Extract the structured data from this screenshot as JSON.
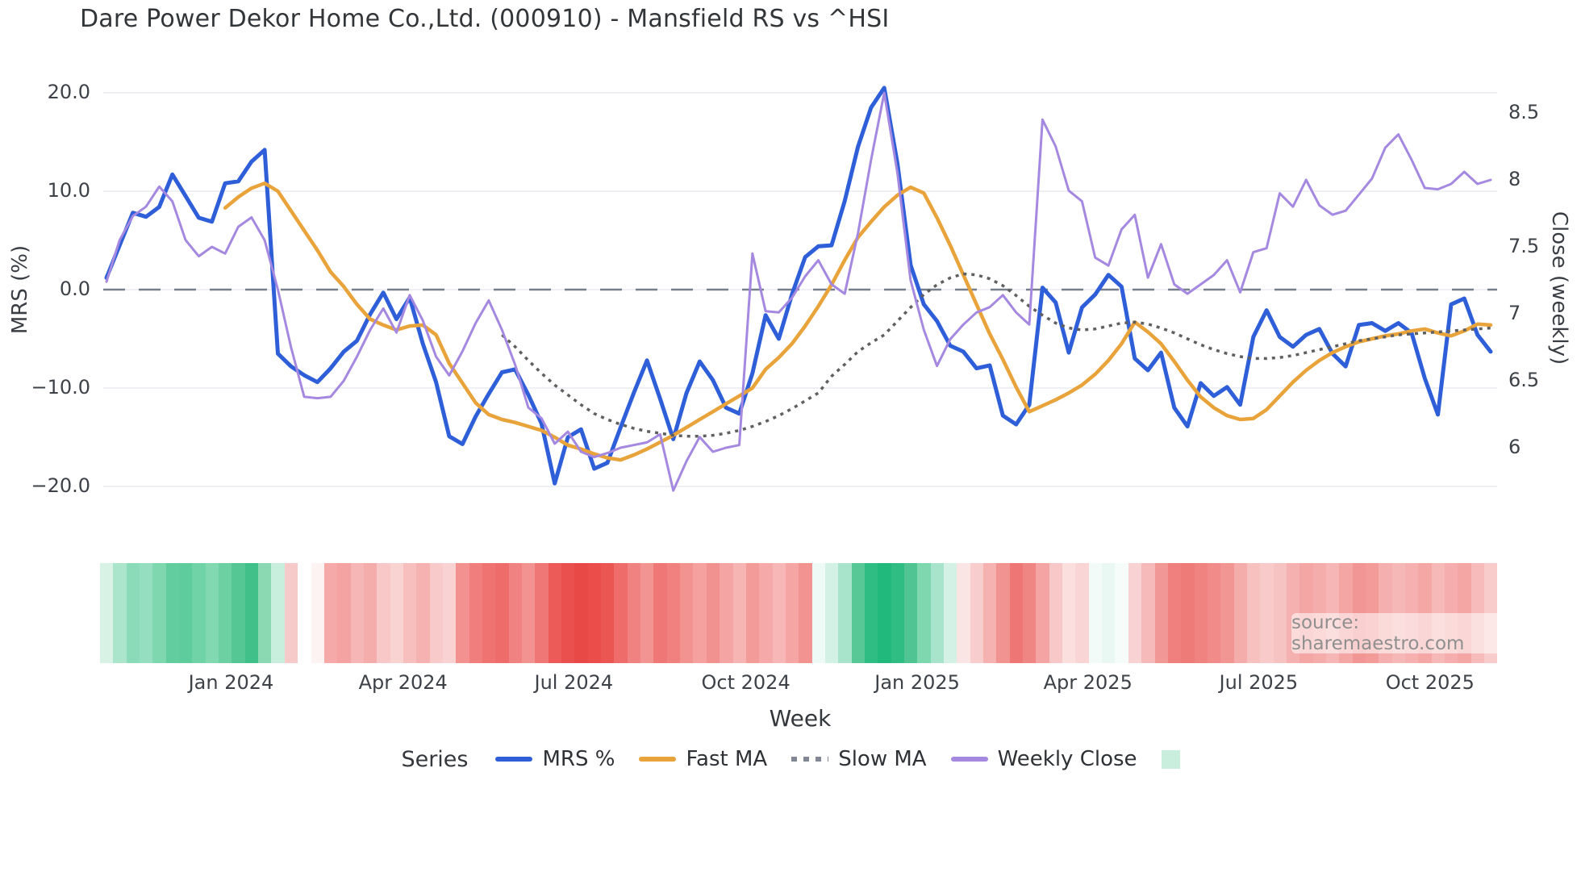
{
  "title": "Dare Power Dekor Home Co.,Ltd. (000910) - Mansfield RS vs ^HSI",
  "source": "source: sharemaestro.com",
  "legend": {
    "title": "Series",
    "entries": [
      {
        "label": "MRS %",
        "color": "#2e5fd8",
        "style": "solid"
      },
      {
        "label": "Fast MA",
        "color": "#e9a33b",
        "style": "solid"
      },
      {
        "label": "Slow MA",
        "color": "#828893",
        "style": "dotted"
      },
      {
        "label": "Weekly Close",
        "color": "#a588e0",
        "style": "solid"
      }
    ],
    "heatmap_swatch_color": "#c9eedd"
  },
  "chart_data": {
    "type": "line",
    "title": "Dare Power Dekor Home Co.,Ltd. (000910) - Mansfield RS vs ^HSI",
    "xlabel": "Week",
    "x_axis": {
      "label": "Week",
      "ticks": [
        {
          "label": "Jan 2024",
          "week": 9.45
        },
        {
          "label": "Apr 2024",
          "week": 22.5
        },
        {
          "label": "Jul 2024",
          "week": 35.45
        },
        {
          "label": "Oct 2024",
          "week": 48.5
        },
        {
          "label": "Jan 2025",
          "week": 61.5
        },
        {
          "label": "Apr 2025",
          "week": 74.45
        },
        {
          "label": "Jul 2025",
          "week": 87.4
        },
        {
          "label": "Oct 2025",
          "week": 100.4
        }
      ]
    },
    "y_left": {
      "label": "MRS (%)",
      "ticks": [
        20,
        10,
        0,
        -10,
        -20
      ],
      "tick_labels": [
        "20.0",
        "10.0",
        "0.0",
        "−10.0",
        "−20.0"
      ],
      "range": [
        -21.5,
        22.4
      ],
      "zero_line": true,
      "grid": true
    },
    "y_right": {
      "label": "Close (weekly)",
      "ticks": [
        8.5,
        8,
        7.5,
        7,
        6.5,
        6
      ],
      "tick_labels": [
        "8.5",
        "8",
        "7.5",
        "7",
        "6.5",
        "6"
      ],
      "range": [
        5.6,
        8.83
      ]
    },
    "weeks": 106,
    "series": [
      {
        "name": "MRS %",
        "axis": "left",
        "color": "#2e5fd8",
        "style": "solid",
        "width": 5,
        "values": [
          1.2,
          4.5,
          7.8,
          7.4,
          8.4,
          11.7,
          9.5,
          7.3,
          6.9,
          10.8,
          11.0,
          13.0,
          14.2,
          -6.5,
          -7.8,
          -8.7,
          -9.4,
          -8.0,
          -6.3,
          -5.2,
          -2.5,
          -0.3,
          -3.0,
          -0.8,
          -5.5,
          -9.4,
          -14.9,
          -15.7,
          -12.9,
          -10.6,
          -8.4,
          -8.1,
          -10.7,
          -13.6,
          -19.7,
          -15.0,
          -14.2,
          -18.2,
          -17.6,
          -14.0,
          -10.5,
          -7.2,
          -11.1,
          -15.2,
          -10.5,
          -7.3,
          -9.2,
          -12.0,
          -12.6,
          -8.5,
          -2.6,
          -5.0,
          -0.5,
          3.3,
          4.4,
          4.5,
          9.0,
          14.5,
          18.5,
          20.5,
          12.8,
          2.5,
          -1.5,
          -3.2,
          -5.7,
          -6.3,
          -8.0,
          -7.7,
          -12.8,
          -13.7,
          -11.7,
          0.2,
          -1.3,
          -6.4,
          -1.8,
          -0.5,
          1.5,
          0.3,
          -7.0,
          -8.2,
          -6.4,
          -12.0,
          -13.9,
          -9.5,
          -10.8,
          -9.9,
          -11.7,
          -4.8,
          -2.1,
          -4.8,
          -5.8,
          -4.6,
          -4.0,
          -6.5,
          -7.8,
          -3.6,
          -3.4,
          -4.2,
          -3.4,
          -4.4,
          -9.0,
          -12.7,
          -1.5,
          -0.9,
          -4.6,
          -6.3
        ]
      },
      {
        "name": "Fast MA",
        "axis": "left",
        "color": "#e9a33b",
        "style": "solid",
        "width": 4.5,
        "values": [
          null,
          null,
          null,
          null,
          null,
          null,
          null,
          null,
          null,
          8.3,
          9.4,
          10.3,
          10.8,
          10.0,
          8.0,
          6.0,
          4.0,
          1.8,
          0.3,
          -1.5,
          -3.0,
          -3.6,
          -4.1,
          -3.7,
          -3.6,
          -4.6,
          -7.5,
          -9.5,
          -11.5,
          -12.7,
          -13.2,
          -13.5,
          -13.9,
          -14.3,
          -15.0,
          -15.8,
          -16.2,
          -16.7,
          -17.1,
          -17.3,
          -16.8,
          -16.2,
          -15.5,
          -14.8,
          -14.0,
          -13.2,
          -12.4,
          -11.6,
          -10.8,
          -10.0,
          -8.1,
          -6.9,
          -5.5,
          -3.7,
          -1.7,
          0.5,
          3.0,
          5.3,
          6.9,
          8.4,
          9.6,
          10.4,
          9.8,
          7.3,
          4.5,
          1.5,
          -1.5,
          -4.5,
          -7.1,
          -9.9,
          -12.4,
          -11.8,
          -11.2,
          -10.5,
          -9.7,
          -8.6,
          -7.2,
          -5.5,
          -3.3,
          -4.3,
          -5.5,
          -7.3,
          -9.2,
          -10.9,
          -12.0,
          -12.8,
          -13.2,
          -13.1,
          -12.2,
          -10.8,
          -9.4,
          -8.2,
          -7.2,
          -6.4,
          -5.8,
          -5.3,
          -5.0,
          -4.7,
          -4.5,
          -4.2,
          -4.0,
          -4.4,
          -4.7,
          -4.2,
          -3.5,
          -3.6
        ]
      },
      {
        "name": "Slow MA",
        "axis": "left",
        "color": "#606060",
        "style": "dotted",
        "width": 3.5,
        "values": [
          null,
          null,
          null,
          null,
          null,
          null,
          null,
          null,
          null,
          null,
          null,
          null,
          null,
          null,
          null,
          null,
          null,
          null,
          null,
          null,
          null,
          null,
          null,
          null,
          null,
          null,
          null,
          null,
          null,
          null,
          -4.6,
          -5.8,
          -7.2,
          -8.5,
          -9.7,
          -10.7,
          -11.7,
          -12.6,
          -13.2,
          -13.7,
          -14.1,
          -14.4,
          -14.6,
          -14.8,
          -14.9,
          -14.9,
          -14.8,
          -14.6,
          -14.3,
          -13.9,
          -13.4,
          -12.8,
          -12.1,
          -11.3,
          -10.5,
          -8.8,
          -7.6,
          -6.3,
          -5.4,
          -4.6,
          -3.2,
          -1.8,
          -0.5,
          0.5,
          1.2,
          1.6,
          1.5,
          1.1,
          0.4,
          -0.6,
          -1.7,
          -2.6,
          -3.4,
          -3.9,
          -4.1,
          -4.0,
          -3.7,
          -3.4,
          -3.3,
          -3.5,
          -3.9,
          -4.4,
          -5.0,
          -5.6,
          -6.1,
          -6.5,
          -6.8,
          -7.0,
          -7.0,
          -6.9,
          -6.7,
          -6.4,
          -6.1,
          -5.8,
          -5.5,
          -5.2,
          -5.0,
          -4.8,
          -4.6,
          -4.5,
          -4.4,
          -4.3,
          -4.2,
          -4.1,
          -4.0,
          -3.9
        ]
      },
      {
        "name": "Weekly Close",
        "axis": "right",
        "color": "#a588e0",
        "style": "solid",
        "width": 3,
        "values": [
          7.24,
          7.55,
          7.73,
          7.8,
          7.95,
          7.84,
          7.55,
          7.43,
          7.5,
          7.45,
          7.65,
          7.72,
          7.55,
          7.18,
          6.75,
          6.38,
          6.37,
          6.38,
          6.5,
          6.68,
          6.88,
          7.04,
          6.86,
          7.14,
          6.95,
          6.68,
          6.54,
          6.72,
          6.93,
          7.1,
          6.88,
          6.62,
          6.3,
          6.22,
          6.03,
          6.12,
          5.97,
          5.93,
          5.96,
          6.0,
          6.02,
          6.04,
          6.1,
          5.68,
          5.9,
          6.08,
          5.97,
          6.0,
          6.02,
          7.45,
          7.02,
          7.01,
          7.12,
          7.28,
          7.4,
          7.22,
          7.15,
          7.6,
          8.15,
          8.65,
          8.05,
          7.25,
          6.88,
          6.61,
          6.81,
          6.92,
          7.01,
          7.05,
          7.14,
          7.01,
          6.92,
          8.45,
          8.25,
          7.92,
          7.84,
          7.42,
          7.36,
          7.63,
          7.74,
          7.27,
          7.52,
          7.22,
          7.15,
          7.22,
          7.29,
          7.4,
          7.16,
          7.46,
          7.49,
          7.9,
          7.8,
          8.0,
          7.81,
          7.74,
          7.77,
          7.89,
          8.01,
          8.24,
          8.34,
          8.15,
          7.94,
          7.93,
          7.97,
          8.06,
          7.97,
          8.0
        ]
      }
    ],
    "heatmap_colors": [
      "#d9f2e6",
      "#abe5cc",
      "#8cdbb8",
      "#95dec0",
      "#7fd7b0",
      "#62cd9f",
      "#5fcc9d",
      "#70d2a7",
      "#82d8b1",
      "#6cd0a3",
      "#55c794",
      "#41c189",
      "#8ad9b3",
      "#c8eedd",
      "#f7caca",
      "#ffffff",
      "#fdf3f3",
      "#f5a9a8",
      "#f4a3a2",
      "#f6b6b5",
      "#f5adac",
      "#f8c8c8",
      "#f9d2d2",
      "#f7bfbe",
      "#f6b2b1",
      "#f8caca",
      "#f9d3d3",
      "#f29190",
      "#ef7e7c",
      "#ee7371",
      "#ee6c6a",
      "#f08381",
      "#f29391",
      "#ef7876",
      "#ec5b58",
      "#ea504d",
      "#e94946",
      "#ea4d4a",
      "#eb5552",
      "#ee6c6a",
      "#f08381",
      "#f29492",
      "#ef7876",
      "#f0817f",
      "#f39391",
      "#f4a19f",
      "#f29290",
      "#f4a4a2",
      "#f6b4b3",
      "#f39b99",
      "#f5aaa9",
      "#f6b7b6",
      "#f4a5a4",
      "#f29391",
      "#eefaf5",
      "#d3f1e4",
      "#a8e3cb",
      "#58c896",
      "#30bd84",
      "#22b97c",
      "#30bd84",
      "#50c593",
      "#7fd7b0",
      "#a8e3cb",
      "#d3f1e4",
      "#fbe4e4",
      "#f8cdcd",
      "#f5b2b1",
      "#f19391",
      "#ee7674",
      "#f08684",
      "#f4a4a2",
      "#f8c8c8",
      "#fbdfdf",
      "#f9d5d5",
      "#f3fbf8",
      "#e9f8f2",
      "#f6fcfa",
      "#f9d3d3",
      "#f6baba",
      "#f19795",
      "#ef807e",
      "#ef7b79",
      "#f0837f",
      "#f18b89",
      "#f29694",
      "#f5adac",
      "#f7c1c0",
      "#f8caca",
      "#f7c3c2",
      "#f5b1b0",
      "#f4a6a4",
      "#f5adac",
      "#f6b6b5",
      "#f4a6a4",
      "#f19694",
      "#f29b99",
      "#f5afae",
      "#f6b8b7",
      "#f5b0af",
      "#f4a7a5",
      "#f6b9b8",
      "#f5aead",
      "#f4a6a4",
      "#f6bbba",
      "#f8cccb"
    ],
    "colors": {
      "grid": "#e9ebf1",
      "zero_line": "#787f8c",
      "background": "#ffffff",
      "text": "#3d4148"
    },
    "legend_position": "bottom"
  }
}
